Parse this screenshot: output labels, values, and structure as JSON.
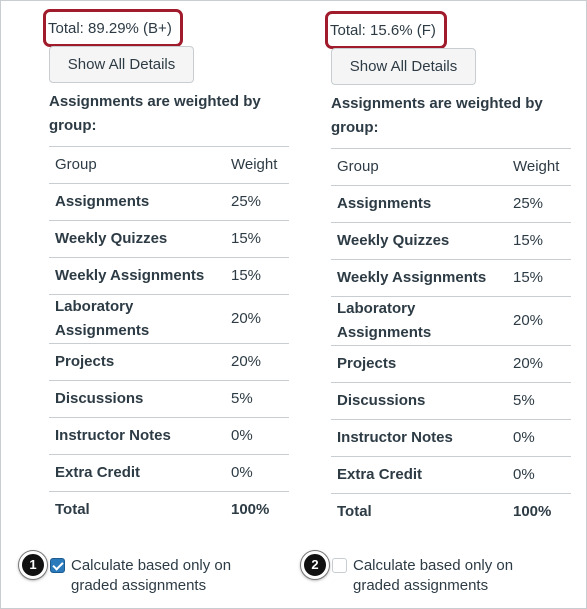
{
  "panels": [
    {
      "total_label": "Total: 89.29% (B+)",
      "show_details_label": "Show All Details",
      "weighted_label": "Assignments are weighted by group:",
      "table": {
        "headers": {
          "group": "Group",
          "weight": "Weight"
        },
        "rows": [
          {
            "group": "Assignments",
            "weight": "25%"
          },
          {
            "group": "Weekly Quizzes",
            "weight": "15%"
          },
          {
            "group": "Weekly Assignments",
            "weight": "15%"
          },
          {
            "group": "Laboratory Assignments",
            "weight": "20%"
          },
          {
            "group": "Projects",
            "weight": "20%"
          },
          {
            "group": "Discussions",
            "weight": "5%"
          },
          {
            "group": "Instructor Notes",
            "weight": "0%"
          },
          {
            "group": "Extra Credit",
            "weight": "0%"
          }
        ],
        "total": {
          "group": "Total",
          "weight": "100%"
        }
      },
      "callout_number": "1",
      "checkbox_checked": true,
      "checkbox_label": "Calculate based only on graded assignments"
    },
    {
      "total_label": "Total: 15.6% (F)",
      "show_details_label": "Show All Details",
      "weighted_label": "Assignments are weighted by group:",
      "table": {
        "headers": {
          "group": "Group",
          "weight": "Weight"
        },
        "rows": [
          {
            "group": "Assignments",
            "weight": "25%"
          },
          {
            "group": "Weekly Quizzes",
            "weight": "15%"
          },
          {
            "group": "Weekly Assignments",
            "weight": "15%"
          },
          {
            "group": "Laboratory Assignments",
            "weight": "20%"
          },
          {
            "group": "Projects",
            "weight": "20%"
          },
          {
            "group": "Discussions",
            "weight": "5%"
          },
          {
            "group": "Instructor Notes",
            "weight": "0%"
          },
          {
            "group": "Extra Credit",
            "weight": "0%"
          }
        ],
        "total": {
          "group": "Total",
          "weight": "100%"
        }
      },
      "callout_number": "2",
      "checkbox_checked": false,
      "checkbox_label": "Calculate based only on graded assignments"
    }
  ],
  "colors": {
    "highlight_border": "#a01b2b",
    "checkbox_checked": "#2b7abc",
    "text": "#2d3b45",
    "table_border": "#c7cdd1"
  },
  "icons": {
    "checked": "checkbox-checked-icon",
    "unchecked": "checkbox-unchecked-icon"
  }
}
